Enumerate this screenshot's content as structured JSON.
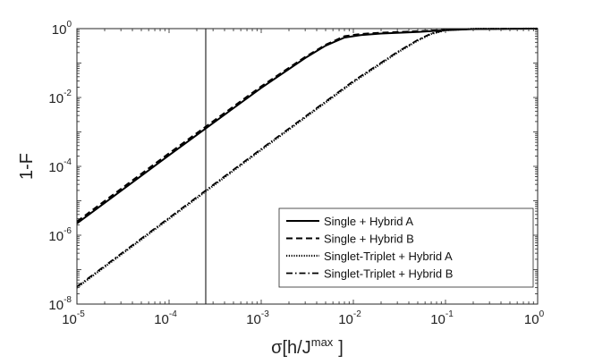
{
  "chart_data": {
    "type": "line",
    "x_scale": "log",
    "y_scale": "log",
    "xlim": [
      1e-05,
      1
    ],
    "ylim": [
      1e-08,
      1
    ],
    "xlabel": {
      "base": "σ[h/J",
      "sup": "max",
      "tail": "]"
    },
    "ylabel": "1-F",
    "x_ticks": [
      {
        "value": 1e-05,
        "base": "10",
        "exp": "-5"
      },
      {
        "value": 0.0001,
        "base": "10",
        "exp": "-4"
      },
      {
        "value": 0.001,
        "base": "10",
        "exp": "-3"
      },
      {
        "value": 0.01,
        "base": "10",
        "exp": "-2"
      },
      {
        "value": 0.1,
        "base": "10",
        "exp": "-1"
      },
      {
        "value": 1,
        "base": "10",
        "exp": "0"
      }
    ],
    "y_ticks": [
      {
        "value": 1e-08,
        "base": "10",
        "exp": "-8"
      },
      {
        "value": 1e-06,
        "base": "10",
        "exp": "-6"
      },
      {
        "value": 0.0001,
        "base": "10",
        "exp": "-4"
      },
      {
        "value": 0.01,
        "base": "10",
        "exp": "-2"
      },
      {
        "value": 1,
        "base": "10",
        "exp": "0"
      }
    ],
    "vline": {
      "x": 0.00025
    },
    "legend_position": "bottom-right",
    "series": [
      {
        "name": "Single + Hybrid A",
        "style": "solid",
        "x": [
          1e-05,
          0.0001,
          0.001,
          0.003,
          0.005,
          0.008,
          0.012,
          0.02,
          0.05,
          0.1,
          0.2,
          1
        ],
        "y": [
          2.2e-06,
          0.00021,
          0.019,
          0.14,
          0.32,
          0.55,
          0.65,
          0.72,
          0.8,
          0.9,
          0.97,
          1
        ]
      },
      {
        "name": "Single + Hybrid B",
        "style": "dashed",
        "x": [
          1e-05,
          0.0001,
          0.001,
          0.003,
          0.005,
          0.008,
          0.012,
          0.02,
          0.05,
          0.1,
          0.2,
          1
        ],
        "y": [
          2.5e-06,
          0.00024,
          0.021,
          0.15,
          0.34,
          0.6,
          0.7,
          0.76,
          0.84,
          0.92,
          0.98,
          1
        ]
      },
      {
        "name": "Singlet-Triplet + Hybrid A",
        "style": "dotted",
        "x": [
          1e-05,
          0.0001,
          0.001,
          0.01,
          0.03,
          0.05,
          0.07,
          0.1,
          0.2,
          1
        ],
        "y": [
          3e-08,
          3e-06,
          0.0003,
          0.028,
          0.2,
          0.45,
          0.7,
          0.9,
          0.99,
          1
        ]
      },
      {
        "name": "Singlet-Triplet + Hybrid B",
        "style": "dashdot",
        "x": [
          1e-05,
          0.0001,
          0.001,
          0.01,
          0.03,
          0.05,
          0.07,
          0.1,
          0.2,
          1
        ],
        "y": [
          3.2e-08,
          3.2e-06,
          0.00032,
          0.03,
          0.21,
          0.47,
          0.72,
          0.91,
          0.99,
          1
        ]
      }
    ]
  }
}
